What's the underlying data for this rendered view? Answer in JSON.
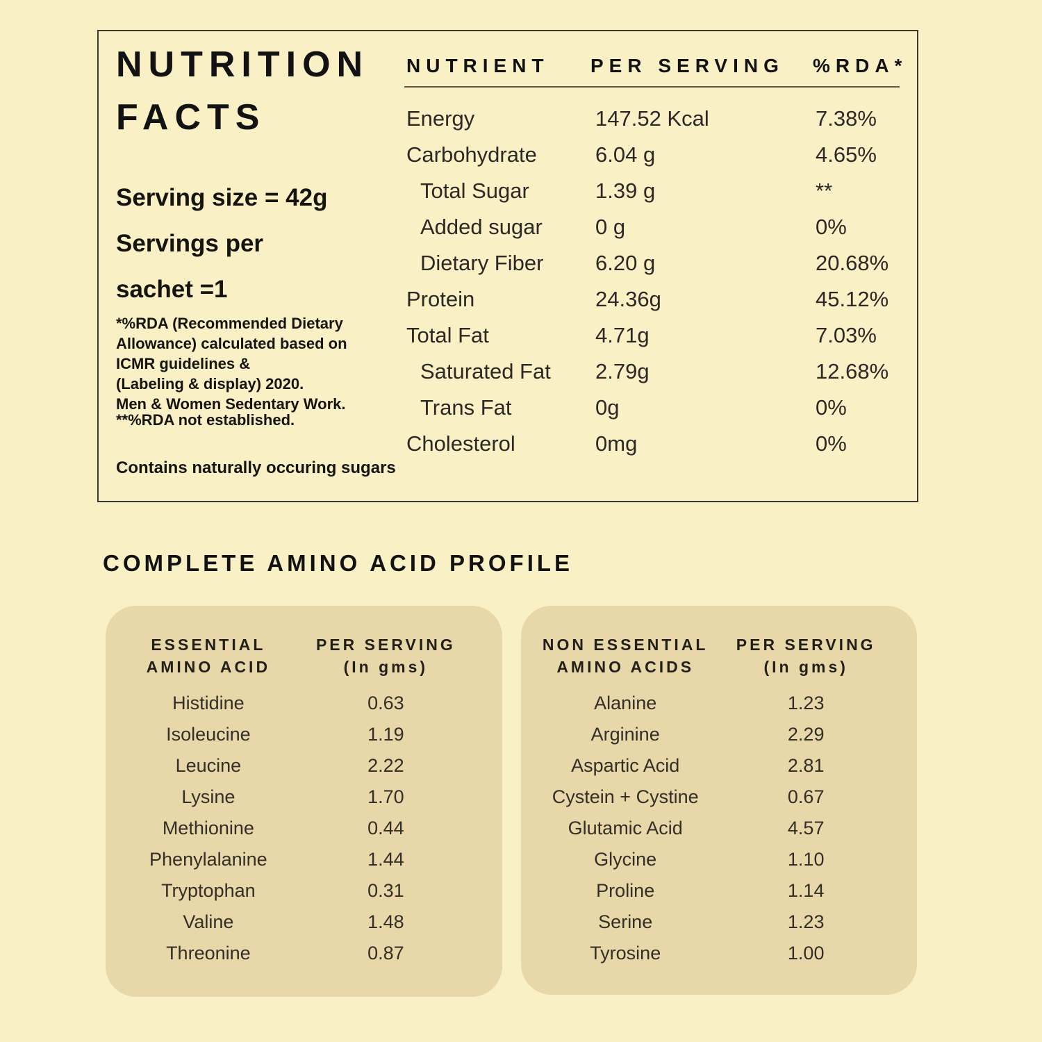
{
  "colors": {
    "background": "#faf0c6",
    "panel": "#e8d7a8",
    "box_border": "#3b3930",
    "text": "#16140f",
    "rule": "#5f5844"
  },
  "nutrition_facts": {
    "title": "NUTRITION\nFACTS",
    "serving_info": "Serving size = 42g\nServings per\nsachet =1",
    "footnote_rda": "*%RDA (Recommended Dietary\nAllowance) calculated based on\nICMR guidelines &\n(Labeling & display) 2020.\nMen & Women Sedentary Work.",
    "footnote_not_established": "**%RDA not established.",
    "contains_note": "Contains naturally occuring sugars",
    "table": {
      "headers": [
        "NUTRIENT",
        "PER SERVING",
        "%RDA*"
      ],
      "rows": [
        {
          "nutrient": "Energy",
          "indent": 0,
          "per_serving": "147.52 Kcal",
          "rda": "7.38%"
        },
        {
          "nutrient": "Carbohydrate",
          "indent": 0,
          "per_serving": "6.04 g",
          "rda": "4.65%"
        },
        {
          "nutrient": "Total Sugar",
          "indent": 1,
          "per_serving": "1.39 g",
          "rda": "**"
        },
        {
          "nutrient": "Added sugar",
          "indent": 1,
          "per_serving": "0 g",
          "rda": "0%"
        },
        {
          "nutrient": "Dietary Fiber",
          "indent": 1,
          "per_serving": "6.20 g",
          "rda": "20.68%"
        },
        {
          "nutrient": "Protein",
          "indent": 0,
          "per_serving": "24.36g",
          "rda": "45.12%"
        },
        {
          "nutrient": "Total Fat",
          "indent": 0,
          "per_serving": "4.71g",
          "rda": "7.03%"
        },
        {
          "nutrient": "Saturated Fat",
          "indent": 1,
          "per_serving": "2.79g",
          "rda": "12.68%"
        },
        {
          "nutrient": "Trans Fat",
          "indent": 1,
          "per_serving": "0g",
          "rda": "0%"
        },
        {
          "nutrient": "Cholesterol",
          "indent": 0,
          "per_serving": "0mg",
          "rda": "0%"
        }
      ]
    }
  },
  "amino_section": {
    "heading": "COMPLETE AMINO ACID PROFILE",
    "tables": [
      {
        "col1_header": "ESSENTIAL\nAMINO ACID",
        "col2_header": "PER SERVING\n(In gms)",
        "rows": [
          [
            "Histidine",
            "0.63"
          ],
          [
            "Isoleucine",
            "1.19"
          ],
          [
            "Leucine",
            "2.22"
          ],
          [
            "Lysine",
            "1.70"
          ],
          [
            "Methionine",
            "0.44"
          ],
          [
            "Phenylalanine",
            "1.44"
          ],
          [
            "Tryptophan",
            "0.31"
          ],
          [
            "Valine",
            "1.48"
          ],
          [
            "Threonine",
            "0.87"
          ]
        ]
      },
      {
        "col1_header": "NON ESSENTIAL\nAMINO ACIDS",
        "col2_header": "PER SERVING\n(In gms)",
        "rows": [
          [
            "Alanine",
            "1.23"
          ],
          [
            "Arginine",
            "2.29"
          ],
          [
            "Aspartic Acid",
            "2.81"
          ],
          [
            "Cystein + Cystine",
            "0.67"
          ],
          [
            "Glutamic Acid",
            "4.57"
          ],
          [
            "Glycine",
            "1.10"
          ],
          [
            "Proline",
            "1.14"
          ],
          [
            "Serine",
            "1.23"
          ],
          [
            "Tyrosine",
            "1.00"
          ]
        ]
      }
    ]
  }
}
